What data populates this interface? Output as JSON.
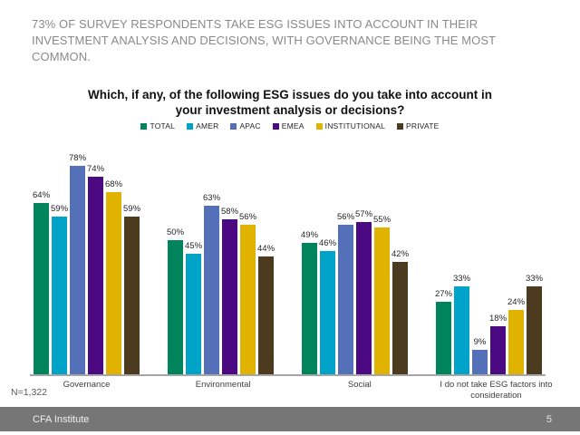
{
  "slide": {
    "headline": "73% OF SURVEY RESPONDENTS TAKE ESG ISSUES INTO ACCOUNT IN THEIR INVESTMENT ANALYSIS AND DECISIONS, WITH GOVERNANCE BEING THE MOST COMMON.",
    "note": "N=1,322",
    "footer": {
      "brand": "CFA Institute",
      "page": "5",
      "bar_color": "#767676"
    }
  },
  "chart_data": {
    "type": "bar",
    "title": "Which, if any, of the following ESG issues do you take into account in your investment analysis or decisions?",
    "categories": [
      "Governance",
      "Environmental",
      "Social",
      "I do not take ESG factors into consideration"
    ],
    "series": [
      {
        "name": "TOTAL",
        "color": "#00845C",
        "values": [
          64,
          50,
          49,
          27
        ]
      },
      {
        "name": "AMER",
        "color": "#00A3C8",
        "values": [
          59,
          45,
          46,
          33
        ]
      },
      {
        "name": "APAC",
        "color": "#5470B8",
        "values": [
          78,
          63,
          56,
          9
        ]
      },
      {
        "name": "EMEA",
        "color": "#4C0A82",
        "values": [
          74,
          58,
          57,
          18
        ]
      },
      {
        "name": "INSTITUTIONAL",
        "color": "#DFB300",
        "values": [
          68,
          56,
          55,
          24
        ]
      },
      {
        "name": "PRIVATE",
        "color": "#4C3B1E",
        "values": [
          59,
          44,
          42,
          33
        ]
      }
    ],
    "value_suffix": "%",
    "ylim": [
      0,
      100
    ],
    "grid": false,
    "legend_position": "top",
    "data_labels": true,
    "axis_line_color": "#a6a6a6"
  }
}
